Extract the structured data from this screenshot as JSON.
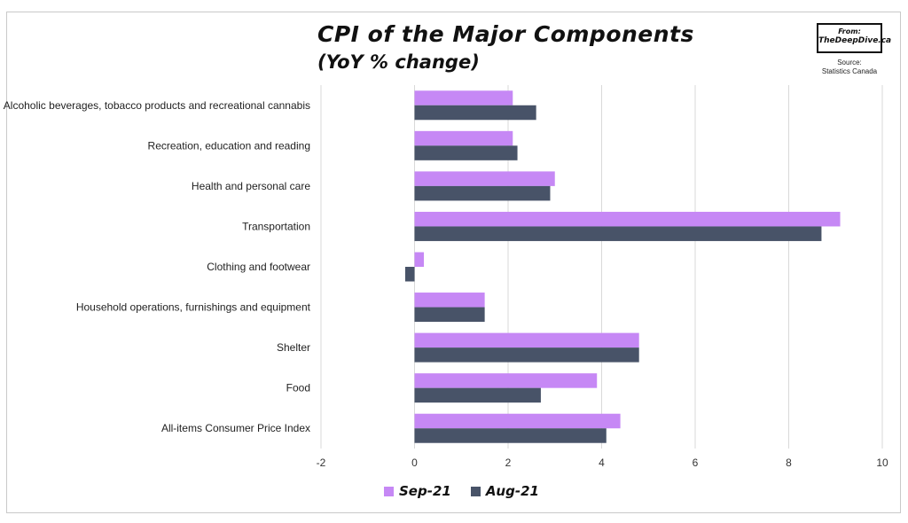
{
  "title": "CPI of the Major Components",
  "subtitle": "(YoY % change)",
  "badge": {
    "line1": "From:",
    "line2": "TheDeepDive.ca"
  },
  "source": {
    "line1": "Source:",
    "line2": "Statistics Canada"
  },
  "colors": {
    "sep": "#c688f5",
    "aug": "#485368",
    "grid": "#d9d9d9"
  },
  "chart_data": {
    "type": "bar",
    "orientation": "horizontal",
    "title": "CPI of the Major Components",
    "subtitle": "(YoY % change)",
    "categories": [
      "Alcoholic beverages, tobacco products and recreational cannabis",
      "Recreation, education and reading",
      "Health and personal care",
      "Transportation",
      "Clothing and footwear",
      "Household operations, furnishings and equipment",
      "Shelter",
      "Food",
      "All-items Consumer Price Index"
    ],
    "series": [
      {
        "name": "Sep-21",
        "values": [
          2.1,
          2.1,
          3.0,
          9.1,
          0.2,
          1.5,
          4.8,
          3.9,
          4.4
        ]
      },
      {
        "name": "Aug-21",
        "values": [
          2.6,
          2.2,
          2.9,
          8.7,
          -0.2,
          1.5,
          4.8,
          2.7,
          4.1
        ]
      }
    ],
    "xlim": [
      -2,
      10
    ],
    "xticks": [
      "-2",
      "0",
      "2",
      "4",
      "6",
      "8",
      "10"
    ],
    "grid": true,
    "legend": "bottom"
  }
}
